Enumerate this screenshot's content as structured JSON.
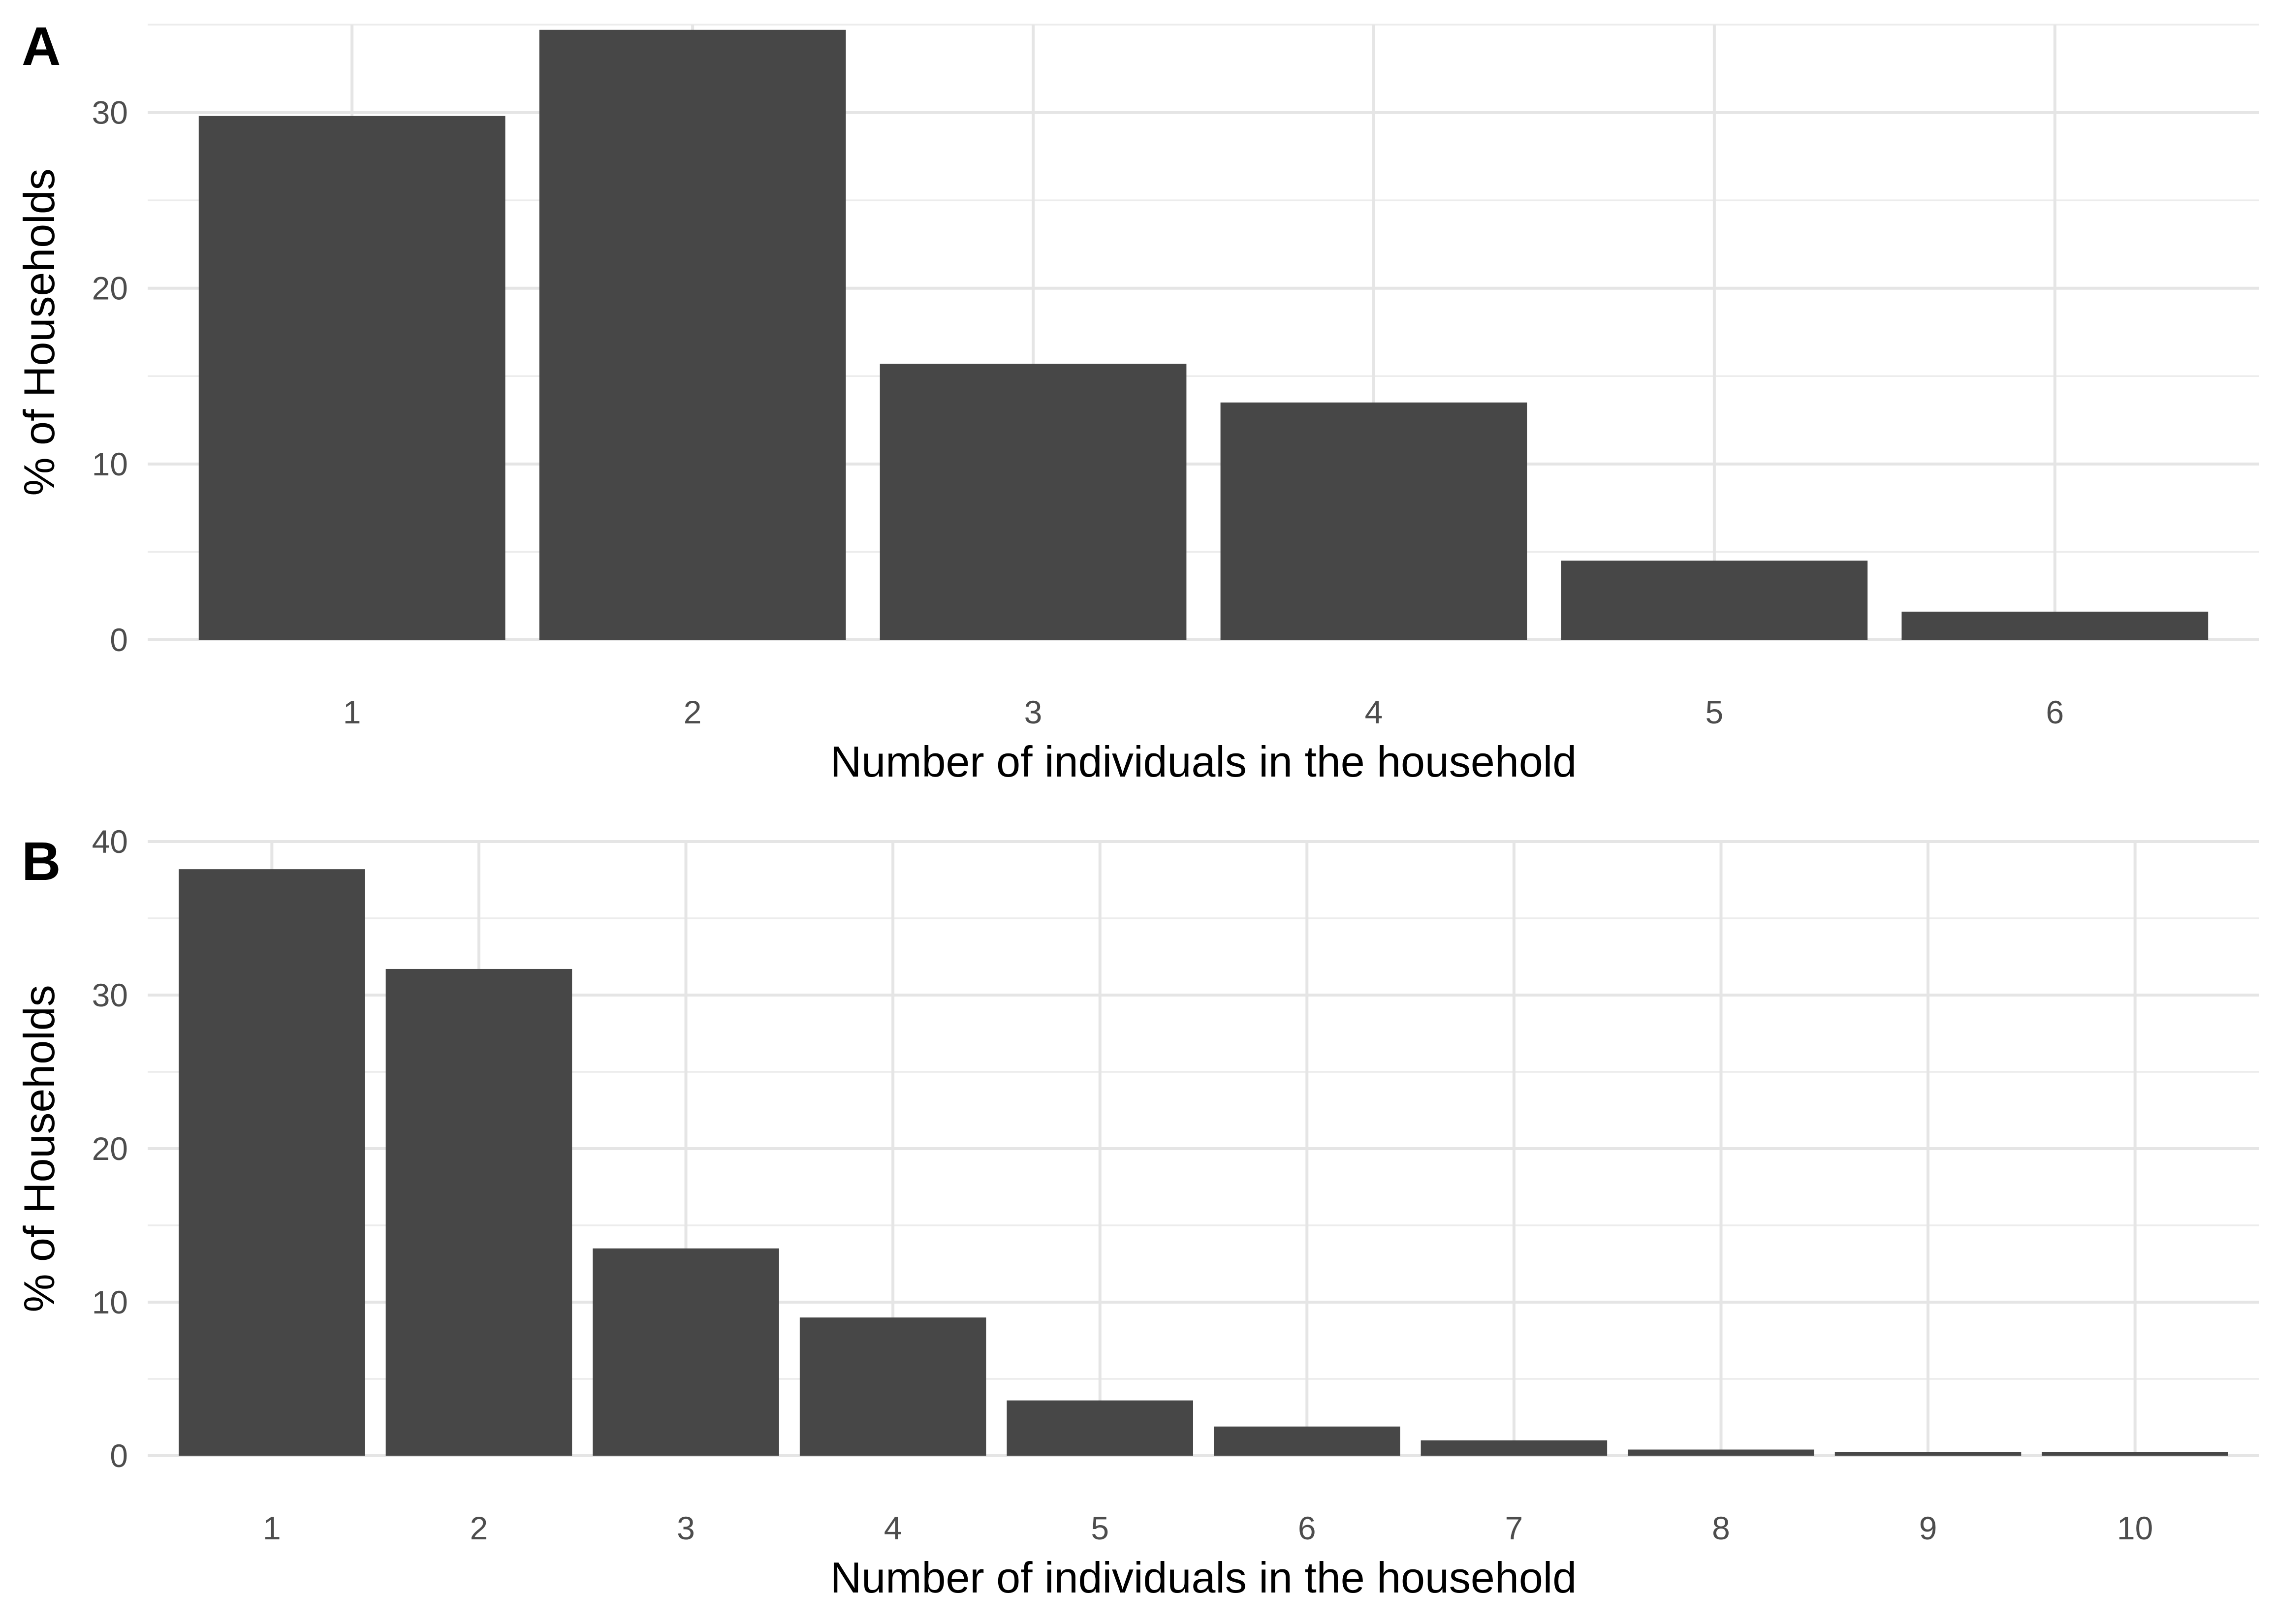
{
  "chart_data": [
    {
      "panel": "A",
      "type": "bar",
      "categories": [
        "1",
        "2",
        "3",
        "4",
        "5",
        "6"
      ],
      "values": [
        29.8,
        34.7,
        15.7,
        13.5,
        4.5,
        1.6
      ],
      "xlabel": "Number of individuals in the household",
      "ylabel": "% of Households",
      "ylim": [
        0,
        35
      ],
      "yticks": [
        0,
        10,
        20,
        30
      ],
      "bar_color": "#474747",
      "grid": true
    },
    {
      "panel": "B",
      "type": "bar",
      "categories": [
        "1",
        "2",
        "3",
        "4",
        "5",
        "6",
        "7",
        "8",
        "9",
        "10"
      ],
      "values": [
        38.2,
        31.7,
        13.5,
        9.0,
        3.6,
        1.9,
        1.0,
        0.4,
        0.25,
        0.25
      ],
      "xlabel": "Number of individuals in the household",
      "ylabel": "% of Households",
      "ylim": [
        0,
        40
      ],
      "yticks": [
        0,
        10,
        20,
        30,
        40
      ],
      "bar_color": "#474747",
      "grid": true
    }
  ]
}
